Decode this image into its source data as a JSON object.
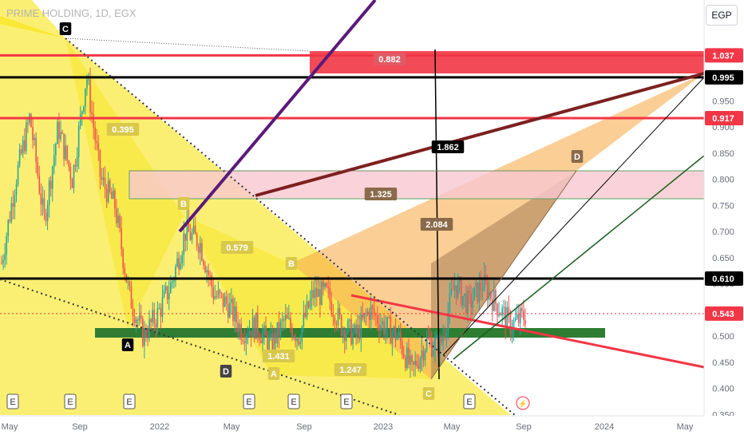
{
  "header": {
    "title": "PRIME HOLDING, 1D, EGX",
    "currency": "EGP"
  },
  "colors": {
    "up": "#26a69a",
    "down": "#ef5350",
    "red_line": "#f23645",
    "black_line": "#000000",
    "purple_line": "#5b1a7a",
    "maroon_line": "#7d1f1f",
    "green_line": "#1b5e20",
    "green_zone": "#2e7d32",
    "yellow_fill": "#f7e200",
    "orange_fill": "#f6a53c",
    "pink_zone": "#f8c8cf",
    "dotted": "#333333"
  },
  "chart_data": {
    "type": "candlestick",
    "title": "PRIME HOLDING, 1D, EGX",
    "currency": "EGP",
    "x_ticks": [
      "May",
      "Sep",
      "2022",
      "May",
      "Sep",
      "2023",
      "May",
      "Sep",
      "2024",
      "May"
    ],
    "y_ticks": [
      "1.000",
      "0.950",
      "0.900",
      "0.850",
      "0.800",
      "0.750",
      "0.700",
      "0.650",
      "0.600",
      "0.500",
      "0.450",
      "0.400",
      "0.350"
    ],
    "ylim": [
      0.34,
      1.06
    ],
    "grid": false,
    "price_labels": [
      {
        "value": 1.037,
        "text": "1.037",
        "style": "red"
      },
      {
        "value": 0.995,
        "text": "0.995",
        "style": "black"
      },
      {
        "value": 0.917,
        "text": "0.917",
        "style": "red"
      },
      {
        "value": 0.61,
        "text": "0.610",
        "style": "black"
      },
      {
        "value": 0.543,
        "text": "0.543",
        "style": "red"
      }
    ],
    "horizontal_levels": [
      {
        "value": 1.037,
        "color": "red"
      },
      {
        "value": 0.995,
        "color": "black"
      },
      {
        "value": 0.917,
        "color": "red"
      },
      {
        "value": 0.61,
        "color": "black"
      }
    ],
    "candle_path": [
      [
        0.64,
        0.64
      ],
      [
        0.8,
        0.64
      ],
      [
        0.92,
        0.79
      ],
      [
        0.72,
        0.86
      ],
      [
        0.9,
        0.82
      ],
      [
        0.8,
        0.85
      ],
      [
        1.0,
        0.98
      ],
      [
        0.8,
        0.87
      ],
      [
        0.75,
        0.78
      ],
      [
        0.58,
        0.7
      ],
      [
        0.5,
        0.56
      ],
      [
        0.54,
        0.53
      ],
      [
        0.6,
        0.58
      ],
      [
        0.7,
        0.68
      ],
      [
        0.68,
        0.64
      ],
      [
        0.58,
        0.58
      ],
      [
        0.56,
        0.55
      ],
      [
        0.51,
        0.54
      ],
      [
        0.52,
        0.56
      ],
      [
        0.48,
        0.53
      ],
      [
        0.53,
        0.52
      ],
      [
        0.5,
        0.54
      ],
      [
        0.58,
        0.56
      ],
      [
        0.58,
        0.55
      ],
      [
        0.52,
        0.54
      ],
      [
        0.5,
        0.56
      ],
      [
        0.55,
        0.53
      ],
      [
        0.52,
        0.53
      ],
      [
        0.5,
        0.5
      ],
      [
        0.43,
        0.46
      ],
      [
        0.49,
        0.47
      ],
      [
        0.48,
        0.51
      ],
      [
        0.6,
        0.54
      ],
      [
        0.56,
        0.62
      ],
      [
        0.6,
        0.57
      ],
      [
        0.56,
        0.54
      ],
      [
        0.52,
        0.54
      ],
      [
        0.54,
        0.542
      ]
    ],
    "annotations": {
      "pattern_points": [
        "C",
        "B",
        "A",
        "D",
        "B",
        "A",
        "C",
        "D"
      ],
      "ratios": [
        "0.395",
        "0.579",
        "1.325",
        "1.862",
        "2.084",
        "1.431",
        "1.247",
        "0.882"
      ],
      "event_markers": [
        "E",
        "E",
        "E",
        "E",
        "E",
        "E",
        "E"
      ]
    }
  }
}
